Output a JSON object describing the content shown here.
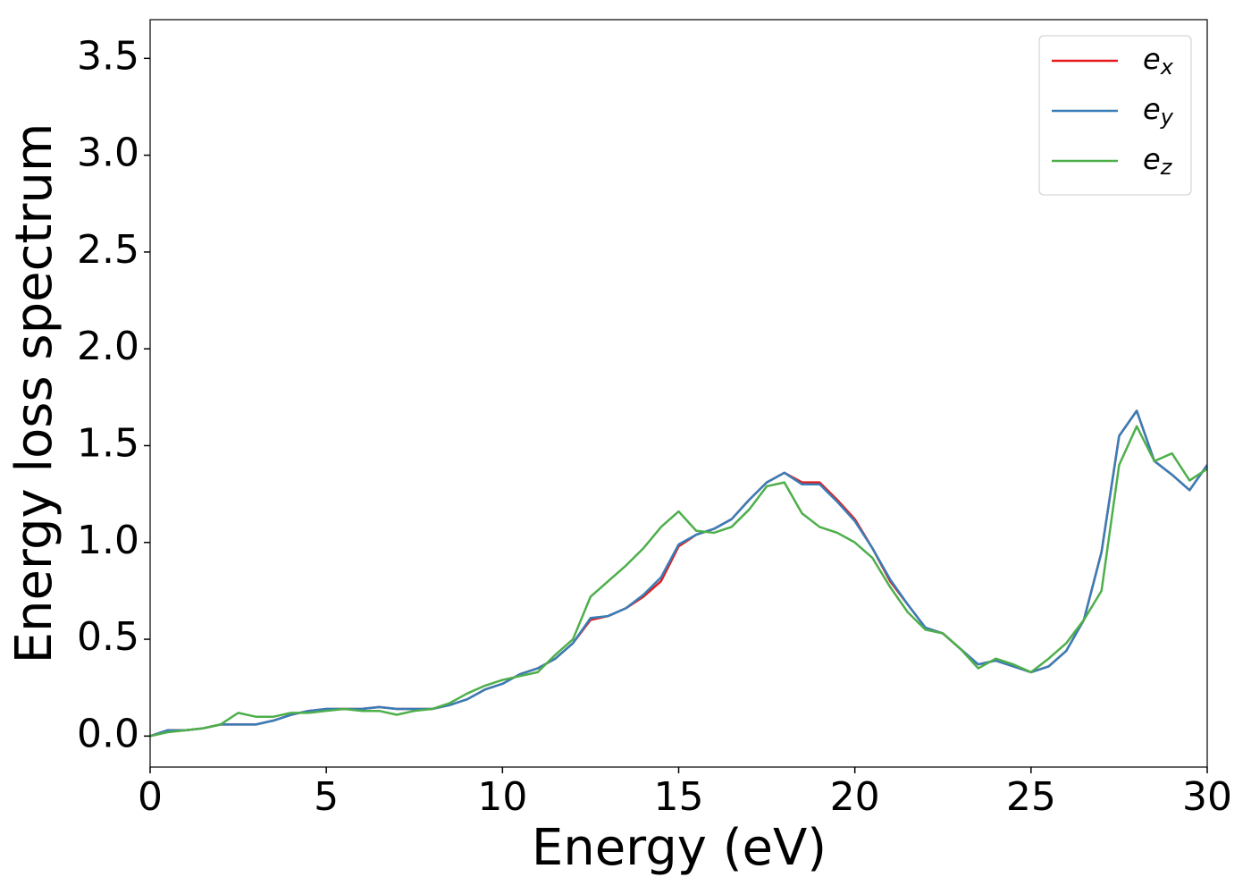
{
  "chart_data": {
    "type": "line",
    "xlabel": "Energy (eV)",
    "ylabel": "Energy loss spectrum",
    "x": [
      0,
      0.5,
      1,
      1.5,
      2,
      2.5,
      3,
      3.5,
      4,
      4.5,
      5,
      5.5,
      6,
      6.5,
      7,
      7.5,
      8,
      8.5,
      9,
      9.5,
      10,
      10.5,
      11,
      11.5,
      12,
      12.5,
      13,
      13.5,
      14,
      14.5,
      15,
      15.5,
      16,
      16.5,
      17,
      17.5,
      18,
      18.5,
      19,
      19.5,
      20,
      20.5,
      21,
      21.5,
      22,
      22.5,
      23,
      23.5,
      24,
      24.5,
      25,
      25.5,
      26,
      26.5,
      27,
      27.5,
      28,
      28.5,
      29,
      29.5,
      30
    ],
    "series": [
      {
        "name": "e_x",
        "color": "#e41a1c",
        "values": [
          0,
          0.03,
          0.03,
          0.04,
          0.06,
          0.06,
          0.06,
          0.08,
          0.11,
          0.13,
          0.14,
          0.14,
          0.14,
          0.15,
          0.14,
          0.14,
          0.14,
          0.16,
          0.19,
          0.24,
          0.27,
          0.32,
          0.35,
          0.4,
          0.48,
          0.6,
          0.62,
          0.66,
          0.72,
          0.8,
          0.98,
          1.04,
          1.07,
          1.12,
          1.22,
          1.31,
          1.36,
          1.31,
          1.31,
          1.22,
          1.12,
          0.97,
          0.8,
          0.68,
          0.56,
          0.53,
          0.45,
          0.37,
          0.39,
          0.36,
          0.33,
          0.36,
          0.44,
          0.6,
          0.95,
          1.55,
          1.68,
          1.42,
          1.35,
          1.27,
          1.4
        ]
      },
      {
        "name": "e_y",
        "color": "#377eb8",
        "values": [
          0,
          0.03,
          0.03,
          0.04,
          0.06,
          0.06,
          0.06,
          0.08,
          0.11,
          0.13,
          0.14,
          0.14,
          0.14,
          0.15,
          0.14,
          0.14,
          0.14,
          0.16,
          0.19,
          0.24,
          0.27,
          0.32,
          0.35,
          0.4,
          0.48,
          0.61,
          0.62,
          0.66,
          0.73,
          0.82,
          0.99,
          1.04,
          1.07,
          1.12,
          1.22,
          1.31,
          1.36,
          1.3,
          1.3,
          1.21,
          1.11,
          0.97,
          0.81,
          0.68,
          0.56,
          0.53,
          0.45,
          0.37,
          0.39,
          0.36,
          0.33,
          0.36,
          0.44,
          0.6,
          0.95,
          1.55,
          1.68,
          1.42,
          1.35,
          1.27,
          1.4
        ]
      },
      {
        "name": "e_z",
        "color": "#4daf4a",
        "values": [
          0,
          0.02,
          0.03,
          0.04,
          0.06,
          0.12,
          0.1,
          0.1,
          0.12,
          0.12,
          0.13,
          0.14,
          0.13,
          0.13,
          0.11,
          0.13,
          0.14,
          0.17,
          0.22,
          0.26,
          0.29,
          0.31,
          0.33,
          0.42,
          0.5,
          0.72,
          0.8,
          0.88,
          0.97,
          1.08,
          1.16,
          1.06,
          1.05,
          1.08,
          1.17,
          1.29,
          1.31,
          1.15,
          1.08,
          1.05,
          1.0,
          0.92,
          0.77,
          0.64,
          0.55,
          0.53,
          0.45,
          0.35,
          0.4,
          0.37,
          0.33,
          0.4,
          0.48,
          0.6,
          0.75,
          1.4,
          1.6,
          1.42,
          1.46,
          1.32,
          1.38
        ]
      }
    ],
    "xlim": [
      0,
      30
    ],
    "xticks": [
      0,
      5,
      10,
      15,
      20,
      25,
      30
    ],
    "ylim": [
      -0.16,
      3.7
    ],
    "yticks": [
      {
        "value": 0,
        "label": "0.0"
      },
      0.5,
      {
        "value": 1,
        "label": "1.0"
      },
      1.5,
      {
        "value": 2,
        "label": "2.0"
      },
      2.5,
      {
        "value": 3,
        "label": "3.0"
      },
      3.5
    ],
    "legend": "upper right",
    "grid": false
  }
}
